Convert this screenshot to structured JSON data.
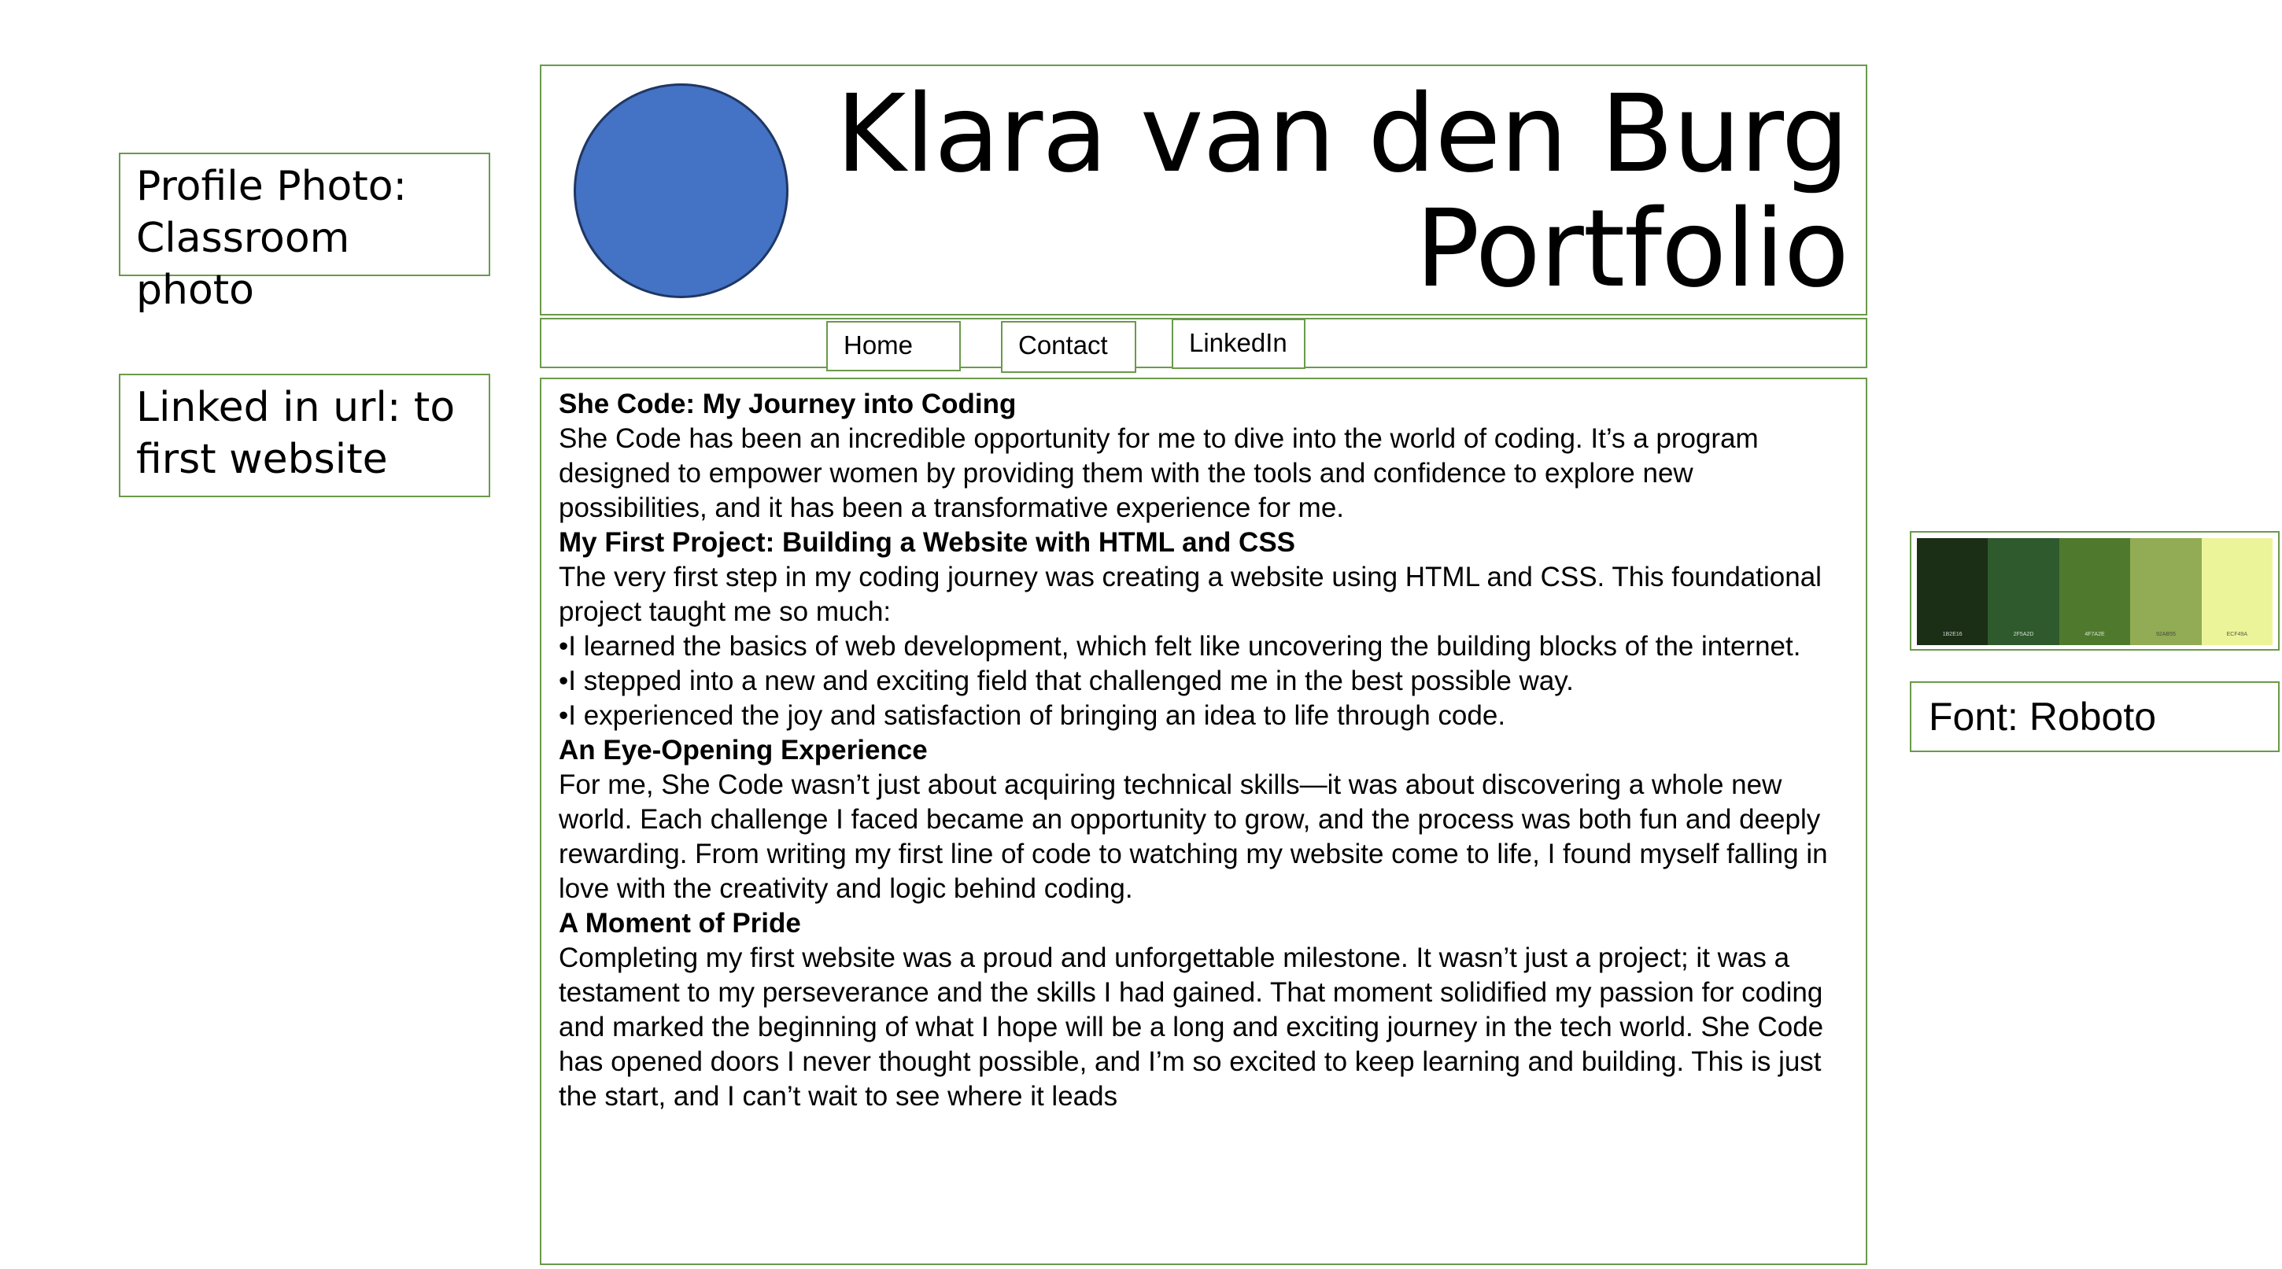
{
  "notes": {
    "profile_photo": "Profile Photo:\nClassroom photo",
    "linkedin_url": "Linked in url: to\nfirst website",
    "font": "Font: Roboto"
  },
  "header": {
    "title": "Klara van den Burg\nPortfolio",
    "avatar_color": "#4472c4"
  },
  "nav": {
    "home": "Home",
    "contact": "Contact",
    "linkedin": "LinkedIn"
  },
  "content": {
    "h1": "She Code: My Journey into Coding",
    "p1": "She Code has been an incredible opportunity for me to dive into the world of coding. It’s a program designed to empower women by providing them with the tools and confidence to explore new possibilities, and it has been a transformative experience for me.",
    "h2": "My First Project: Building a Website with HTML and CSS",
    "p2": "The very first step in my coding journey was creating a website using HTML and CSS. This foundational project taught me so much:",
    "b1": "•I learned the basics of web development, which felt like uncovering the building blocks of the internet.",
    "b2": "•I stepped into a new and exciting field that challenged me in the best possible way.",
    "b3": "•I experienced the joy and satisfaction of bringing an idea to life through code.",
    "h3": "An Eye-Opening Experience",
    "p3": "For me, She Code wasn’t just about acquiring technical skills—it was about discovering a whole new world. Each challenge I faced became an opportunity to grow, and the process was both fun and deeply rewarding. From writing my first line of code to watching my website come to life, I found myself falling in love with the creativity and logic behind coding.",
    "h4": "A Moment of Pride",
    "p4": "Completing my first website was a proud and unforgettable milestone. It wasn’t just a project; it was a testament to my perseverance and the skills I had gained. That moment solidified my passion for coding and marked the beginning of what I hope will be a long and exciting journey in the tech world. She Code has opened doors I never thought possible, and I’m so excited to keep learning and building. This is just the start, and I can’t wait to see where it leads"
  },
  "palette": [
    {
      "color": "#1b2e16",
      "label": "1B2E16"
    },
    {
      "color": "#2f5a2d",
      "label": "2F5A2D"
    },
    {
      "color": "#4f7a2e",
      "label": "4F7A2E"
    },
    {
      "color": "#92ab55",
      "label": "92AB55"
    },
    {
      "color": "#ecf49a",
      "label": "ECF49A"
    }
  ]
}
